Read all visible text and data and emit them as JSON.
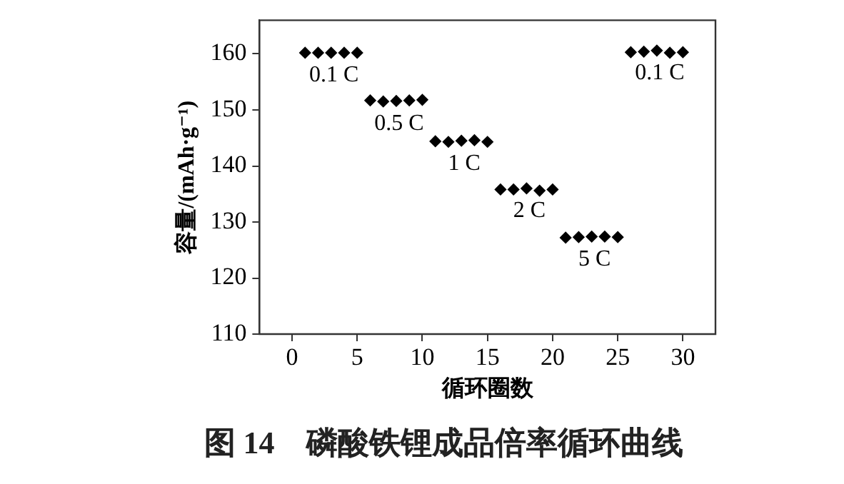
{
  "chart_data": {
    "type": "scatter",
    "title": "图 14　磷酸铁锂成品倍率循环曲线",
    "xlabel": "循环圈数",
    "ylabel": "容量/(mAh·g⁻¹)",
    "series": [
      {
        "color": "#000000",
        "x": [
          1,
          2,
          3,
          4,
          5,
          6,
          7,
          8,
          9,
          10,
          11,
          12,
          13,
          14,
          15,
          16,
          17,
          18,
          19,
          20,
          21,
          22,
          23,
          24,
          25,
          26,
          27,
          28,
          29,
          30
        ],
        "values": [
          160.2,
          160.2,
          160.2,
          160.2,
          160.2,
          151.7,
          151.5,
          151.6,
          151.7,
          151.8,
          144.4,
          144.3,
          144.5,
          144.6,
          144.3,
          135.8,
          135.8,
          136,
          135.6,
          135.8,
          127.2,
          127.3,
          127.4,
          127.4,
          127.3,
          160.3,
          160.4,
          160.6,
          160.2,
          160.3
        ]
      }
    ],
    "xlim": [
      -2.5,
      32.5
    ],
    "xticks": [
      0,
      5,
      10,
      15,
      20,
      25,
      30
    ],
    "ylim": [
      110,
      166
    ],
    "yticks": [
      110,
      120,
      130,
      140,
      150,
      160
    ],
    "marker": "diamond",
    "grid": false,
    "legend": false,
    "annotations": [
      {
        "text": "0.1 C",
        "x": 3,
        "y": 160.2
      },
      {
        "text": "0.5 C",
        "x": 8,
        "y": 151.6
      },
      {
        "text": "1 C",
        "x": 13,
        "y": 144.5
      },
      {
        "text": "2 C",
        "x": 18,
        "y": 136
      },
      {
        "text": "5 C",
        "x": 23,
        "y": 127.4
      },
      {
        "text": "0.1 C",
        "x": 28,
        "y": 160.6
      }
    ]
  }
}
